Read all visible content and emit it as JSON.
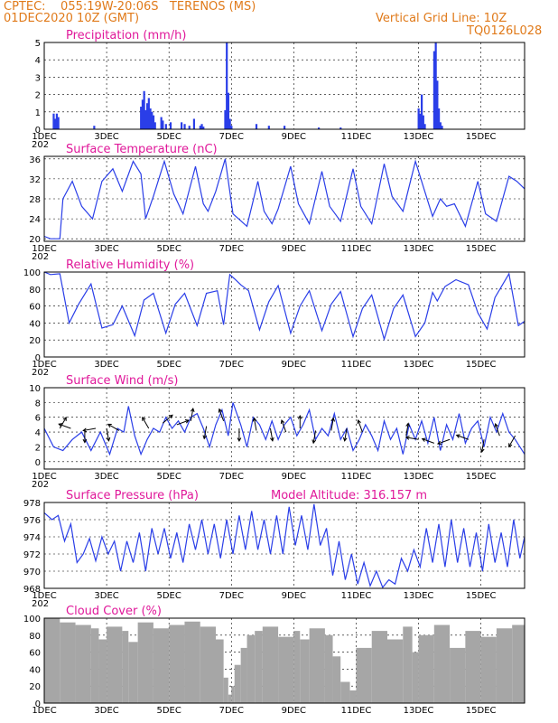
{
  "header": {
    "line1": "CPTEC:    055:19W-20:06S   TERENOS (MS)",
    "line2": "01DEC2020 10Z (GMT)",
    "grid_note": "Vertical Grid Line: 10Z",
    "code": "TQ0126L028"
  },
  "colors": {
    "header": "#e07a1a",
    "title": "#e0189a",
    "line": "#2a3ee8",
    "cloud": "#a6a6a6",
    "arrow": "#000000"
  },
  "x_axis": {
    "day_min": 1,
    "day_max": 16.4,
    "tick_days": [
      1,
      3,
      5,
      7,
      9,
      11,
      13,
      15
    ],
    "tick_labels": [
      "1DEC",
      "3DEC",
      "5DEC",
      "7DEC",
      "9DEC",
      "11DEC",
      "13DEC",
      "15DEC"
    ],
    "partial_label": "202"
  },
  "panels": [
    {
      "key": "precip",
      "title": "Precipitation (mm/h)",
      "type": "bar",
      "ylim": [
        0,
        5
      ],
      "yticks": [
        0,
        1,
        2,
        3,
        4,
        5
      ]
    },
    {
      "key": "temp",
      "title": "Surface Temperature (nC)",
      "type": "line",
      "ylim": [
        19.5,
        36.5
      ],
      "yticks": [
        20,
        24,
        28,
        32,
        36
      ]
    },
    {
      "key": "rh",
      "title": "Relative Humidity (%)",
      "type": "line",
      "ylim": [
        0,
        100
      ],
      "yticks": [
        0,
        20,
        40,
        60,
        80,
        100
      ]
    },
    {
      "key": "wind",
      "title": "Surface Wind (m/s)",
      "type": "line",
      "ylim": [
        -1,
        10
      ],
      "yticks": [
        0,
        2,
        4,
        6,
        8,
        10
      ]
    },
    {
      "key": "pres",
      "title": "Surface Pressure (hPa)",
      "type": "line",
      "ylim": [
        968,
        978
      ],
      "yticks": [
        968,
        970,
        972,
        974,
        976,
        978
      ],
      "extra": "Model Altitude: 316.157 m"
    },
    {
      "key": "cloud",
      "title": "Cloud Cover (%)",
      "type": "area",
      "ylim": [
        0,
        100
      ],
      "yticks": [
        0,
        20,
        40,
        60,
        80,
        100
      ]
    }
  ],
  "chart_data": [
    {
      "type": "bar",
      "title": "Precipitation (mm/h)",
      "unit": "mm/h",
      "x_unit": "day of December 2020",
      "ylim": [
        0,
        5
      ],
      "x": [
        1.3,
        1.35,
        1.4,
        1.45,
        2.6,
        4.1,
        4.15,
        4.2,
        4.25,
        4.3,
        4.35,
        4.4,
        4.45,
        4.5,
        4.55,
        4.75,
        4.8,
        4.9,
        5.05,
        5.4,
        5.5,
        5.65,
        5.8,
        6.0,
        6.05,
        6.1,
        6.8,
        6.85,
        6.9,
        6.95,
        7.0,
        7.8,
        8.2,
        8.7,
        9.8,
        10.5,
        13.0,
        13.05,
        13.1,
        13.15,
        13.2,
        13.5,
        13.55,
        13.6,
        13.65,
        13.7,
        13.75
      ],
      "values": [
        0.9,
        0.6,
        0.9,
        0.7,
        0.2,
        1.3,
        1.7,
        2.2,
        1.1,
        1.5,
        1.8,
        1.2,
        1.0,
        0.8,
        0.4,
        0.7,
        0.5,
        0.3,
        0.4,
        0.4,
        0.3,
        0.2,
        0.6,
        0.2,
        0.3,
        0.15,
        1.1,
        5.0,
        2.1,
        0.6,
        0.2,
        0.3,
        0.2,
        0.2,
        0.1,
        0.1,
        1.2,
        0.9,
        2.0,
        0.8,
        0.3,
        4.5,
        5.0,
        2.8,
        1.2,
        0.4,
        0.2
      ]
    },
    {
      "type": "line",
      "title": "Surface Temperature (nC)",
      "unit": "nC",
      "x_unit": "day of December 2020",
      "ylim": [
        19.5,
        36.5
      ],
      "x": [
        1.0,
        1.2,
        1.5,
        1.6,
        1.9,
        2.2,
        2.55,
        2.85,
        3.2,
        3.5,
        3.85,
        4.1,
        4.25,
        4.5,
        4.85,
        5.15,
        5.45,
        5.85,
        6.1,
        6.25,
        6.5,
        6.8,
        7.05,
        7.5,
        7.85,
        8.05,
        8.3,
        8.5,
        8.9,
        9.15,
        9.5,
        9.9,
        10.15,
        10.5,
        10.9,
        11.15,
        11.5,
        11.9,
        12.15,
        12.5,
        12.9,
        13.15,
        13.45,
        13.7,
        13.9,
        14.15,
        14.5,
        14.9,
        15.15,
        15.5,
        15.9,
        16.15,
        16.4
      ],
      "values": [
        20.5,
        20.0,
        20.0,
        28.0,
        31.5,
        26.5,
        24.0,
        31.5,
        34.0,
        29.5,
        35.5,
        33.0,
        24.0,
        28.5,
        35.5,
        29.0,
        25.0,
        34.5,
        27.0,
        25.5,
        29.5,
        36.0,
        25.0,
        22.5,
        31.5,
        25.5,
        23.0,
        26.0,
        34.5,
        27.0,
        23.0,
        33.5,
        26.5,
        23.5,
        34.0,
        26.5,
        23.0,
        35.0,
        28.5,
        25.5,
        35.5,
        30.5,
        24.5,
        28.0,
        26.5,
        27.0,
        22.5,
        31.5,
        25.0,
        23.5,
        32.5,
        31.5,
        30.0
      ]
    },
    {
      "type": "line",
      "title": "Relative Humidity (%)",
      "unit": "%",
      "x_unit": "day of December 2020",
      "ylim": [
        0,
        100
      ],
      "x": [
        1.0,
        1.2,
        1.5,
        1.8,
        2.1,
        2.5,
        2.85,
        3.2,
        3.5,
        3.9,
        4.2,
        4.5,
        4.9,
        5.2,
        5.5,
        5.9,
        6.2,
        6.55,
        6.75,
        6.95,
        7.1,
        7.3,
        7.55,
        7.9,
        8.2,
        8.5,
        8.9,
        9.2,
        9.5,
        9.9,
        10.2,
        10.5,
        10.9,
        11.2,
        11.5,
        11.9,
        12.2,
        12.5,
        12.9,
        13.2,
        13.45,
        13.6,
        13.85,
        14.2,
        14.6,
        14.9,
        15.2,
        15.45,
        15.9,
        16.2,
        16.4
      ],
      "values": [
        100,
        97,
        98,
        40,
        62,
        86,
        34,
        38,
        60,
        25,
        67,
        75,
        28,
        62,
        75,
        37,
        75,
        78,
        38,
        97,
        92,
        85,
        78,
        32,
        65,
        84,
        28,
        60,
        78,
        31,
        62,
        77,
        24,
        57,
        73,
        21,
        57,
        73,
        24,
        40,
        76,
        66,
        83,
        91,
        85,
        52,
        33,
        70,
        98,
        37,
        42
      ]
    },
    {
      "type": "line",
      "title": "Surface Wind (m/s)",
      "unit": "m/s",
      "x_unit": "day of December 2020",
      "ylim": [
        -1,
        10
      ],
      "x": [
        1.0,
        1.3,
        1.6,
        1.9,
        2.2,
        2.5,
        2.8,
        3.1,
        3.35,
        3.55,
        3.7,
        3.9,
        4.1,
        4.3,
        4.5,
        4.7,
        4.9,
        5.1,
        5.3,
        5.5,
        5.7,
        5.9,
        6.1,
        6.3,
        6.5,
        6.7,
        6.9,
        7.05,
        7.3,
        7.5,
        7.7,
        7.9,
        8.1,
        8.3,
        8.5,
        8.7,
        8.9,
        9.1,
        9.3,
        9.5,
        9.7,
        9.9,
        10.1,
        10.3,
        10.5,
        10.7,
        10.9,
        11.1,
        11.3,
        11.5,
        11.7,
        11.9,
        12.1,
        12.3,
        12.5,
        12.7,
        12.9,
        13.1,
        13.3,
        13.5,
        13.7,
        13.9,
        14.1,
        14.3,
        14.5,
        14.7,
        14.9,
        15.1,
        15.3,
        15.5,
        15.7,
        15.9,
        16.1,
        16.4
      ],
      "values": [
        4.5,
        2.0,
        1.5,
        3.0,
        4.0,
        1.5,
        4.0,
        1.0,
        4.5,
        4.0,
        7.5,
        3.5,
        1.0,
        3.0,
        4.5,
        4.0,
        6.0,
        4.5,
        5.5,
        4.0,
        6.0,
        6.5,
        4.5,
        2.0,
        5.0,
        7.0,
        3.5,
        8.0,
        5.0,
        2.0,
        6.0,
        5.0,
        3.0,
        5.5,
        3.0,
        5.0,
        6.0,
        3.5,
        5.0,
        7.0,
        3.0,
        4.5,
        3.5,
        6.5,
        3.0,
        4.5,
        1.5,
        3.0,
        5.0,
        3.5,
        1.5,
        5.5,
        3.0,
        4.5,
        1.0,
        5.0,
        3.0,
        5.5,
        2.5,
        6.0,
        1.5,
        5.0,
        3.0,
        6.5,
        2.5,
        4.5,
        5.5,
        2.0,
        6.0,
        4.0,
        6.5,
        4.0,
        3.0,
        1.0
      ]
    },
    {
      "type": "line",
      "title": "Surface Pressure (hPa)",
      "unit": "hPa",
      "x_unit": "day of December 2020",
      "ylim": [
        968,
        978
      ],
      "x": [
        1.0,
        1.25,
        1.45,
        1.65,
        1.85,
        2.05,
        2.25,
        2.45,
        2.65,
        2.85,
        3.05,
        3.25,
        3.45,
        3.65,
        3.85,
        4.05,
        4.25,
        4.45,
        4.65,
        4.85,
        5.05,
        5.25,
        5.45,
        5.65,
        5.85,
        6.05,
        6.25,
        6.45,
        6.65,
        6.85,
        7.05,
        7.25,
        7.45,
        7.65,
        7.85,
        8.05,
        8.25,
        8.45,
        8.65,
        8.85,
        9.05,
        9.25,
        9.45,
        9.65,
        9.85,
        10.05,
        10.25,
        10.45,
        10.65,
        10.85,
        11.05,
        11.25,
        11.45,
        11.65,
        11.85,
        12.05,
        12.25,
        12.45,
        12.65,
        12.85,
        13.05,
        13.25,
        13.45,
        13.65,
        13.85,
        14.05,
        14.25,
        14.45,
        14.65,
        14.85,
        15.05,
        15.25,
        15.45,
        15.65,
        15.85,
        16.05,
        16.25,
        16.4
      ],
      "values": [
        976.8,
        976.0,
        976.5,
        973.5,
        975.5,
        971.0,
        972.0,
        973.8,
        971.2,
        974.0,
        972.0,
        973.5,
        970.0,
        973.5,
        971.0,
        974.5,
        970.0,
        975.0,
        972.0,
        975.0,
        971.5,
        974.5,
        971.0,
        975.5,
        972.5,
        976.0,
        972.0,
        975.5,
        971.5,
        976.0,
        972.0,
        976.5,
        972.5,
        977.0,
        972.5,
        976.0,
        972.0,
        976.5,
        972.0,
        977.5,
        973.0,
        976.5,
        972.5,
        977.8,
        973.0,
        975.0,
        969.5,
        973.5,
        969.0,
        972.0,
        968.5,
        971.0,
        968.3,
        970.0,
        968.1,
        969.0,
        968.5,
        971.5,
        970.0,
        972.5,
        970.5,
        975.0,
        971.0,
        975.5,
        970.5,
        976.0,
        971.0,
        975.0,
        970.5,
        974.5,
        970.0,
        975.5,
        971.0,
        974.5,
        970.5,
        976.0,
        971.5,
        974.0
      ]
    },
    {
      "type": "area",
      "title": "Cloud Cover (%)",
      "unit": "%",
      "x_unit": "day of December 2020",
      "ylim": [
        0,
        100
      ],
      "x": [
        1.0,
        1.5,
        2.0,
        2.5,
        2.75,
        3.0,
        3.5,
        3.7,
        4.0,
        4.5,
        5.0,
        5.5,
        6.0,
        6.5,
        6.75,
        6.9,
        7.0,
        7.1,
        7.3,
        7.5,
        7.75,
        8.0,
        8.5,
        9.0,
        9.2,
        9.5,
        10.0,
        10.25,
        10.5,
        10.8,
        11.0,
        11.5,
        12.0,
        12.5,
        12.8,
        13.0,
        13.5,
        14.0,
        14.5,
        15.0,
        15.5,
        16.0,
        16.4
      ],
      "values": [
        100,
        95,
        92,
        88,
        75,
        90,
        85,
        72,
        95,
        88,
        92,
        96,
        90,
        75,
        30,
        10,
        20,
        45,
        65,
        80,
        85,
        90,
        78,
        85,
        75,
        88,
        80,
        55,
        25,
        15,
        65,
        85,
        75,
        90,
        60,
        80,
        92,
        65,
        85,
        78,
        88,
        92,
        98
      ]
    }
  ],
  "wind_arrows": [
    {
      "day": 1.5,
      "speed": 4.5,
      "dir_deg": 300
    },
    {
      "day": 1.85,
      "speed": 4.5,
      "dir_deg": 200
    },
    {
      "day": 2.3,
      "speed": 4.3,
      "dir_deg": 90
    },
    {
      "day": 2.65,
      "speed": 4.5,
      "dir_deg": 170
    },
    {
      "day": 3.0,
      "speed": 4.5,
      "dir_deg": 80
    },
    {
      "day": 3.4,
      "speed": 4.2,
      "dir_deg": 210
    },
    {
      "day": 4.35,
      "speed": 4.5,
      "dir_deg": 240
    },
    {
      "day": 4.8,
      "speed": 5.2,
      "dir_deg": 320
    },
    {
      "day": 5.25,
      "speed": 5.0,
      "dir_deg": 340
    },
    {
      "day": 5.7,
      "speed": 5.5,
      "dir_deg": 280
    },
    {
      "day": 6.2,
      "speed": 4.8,
      "dir_deg": 100
    },
    {
      "day": 6.75,
      "speed": 5.5,
      "dir_deg": 250
    },
    {
      "day": 7.25,
      "speed": 4.5,
      "dir_deg": 90
    },
    {
      "day": 7.8,
      "speed": 4.2,
      "dir_deg": 260
    },
    {
      "day": 8.25,
      "speed": 4.5,
      "dir_deg": 80
    },
    {
      "day": 8.75,
      "speed": 4.0,
      "dir_deg": 250
    },
    {
      "day": 9.2,
      "speed": 4.5,
      "dir_deg": 270
    },
    {
      "day": 9.7,
      "speed": 4.2,
      "dir_deg": 100
    },
    {
      "day": 10.2,
      "speed": 4.2,
      "dir_deg": 280
    },
    {
      "day": 10.7,
      "speed": 4.5,
      "dir_deg": 100
    },
    {
      "day": 11.2,
      "speed": 4.0,
      "dir_deg": 250
    },
    {
      "day": 12.6,
      "speed": 3.5,
      "dir_deg": 280
    },
    {
      "day": 13.0,
      "speed": 3.0,
      "dir_deg": 190
    },
    {
      "day": 13.5,
      "speed": 2.5,
      "dir_deg": 200
    },
    {
      "day": 14.0,
      "speed": 3.0,
      "dir_deg": 160
    },
    {
      "day": 14.6,
      "speed": 3.0,
      "dir_deg": 200
    },
    {
      "day": 15.1,
      "speed": 3.0,
      "dir_deg": 100
    },
    {
      "day": 15.6,
      "speed": 3.5,
      "dir_deg": 250
    },
    {
      "day": 16.1,
      "speed": 3.5,
      "dir_deg": 120
    }
  ]
}
